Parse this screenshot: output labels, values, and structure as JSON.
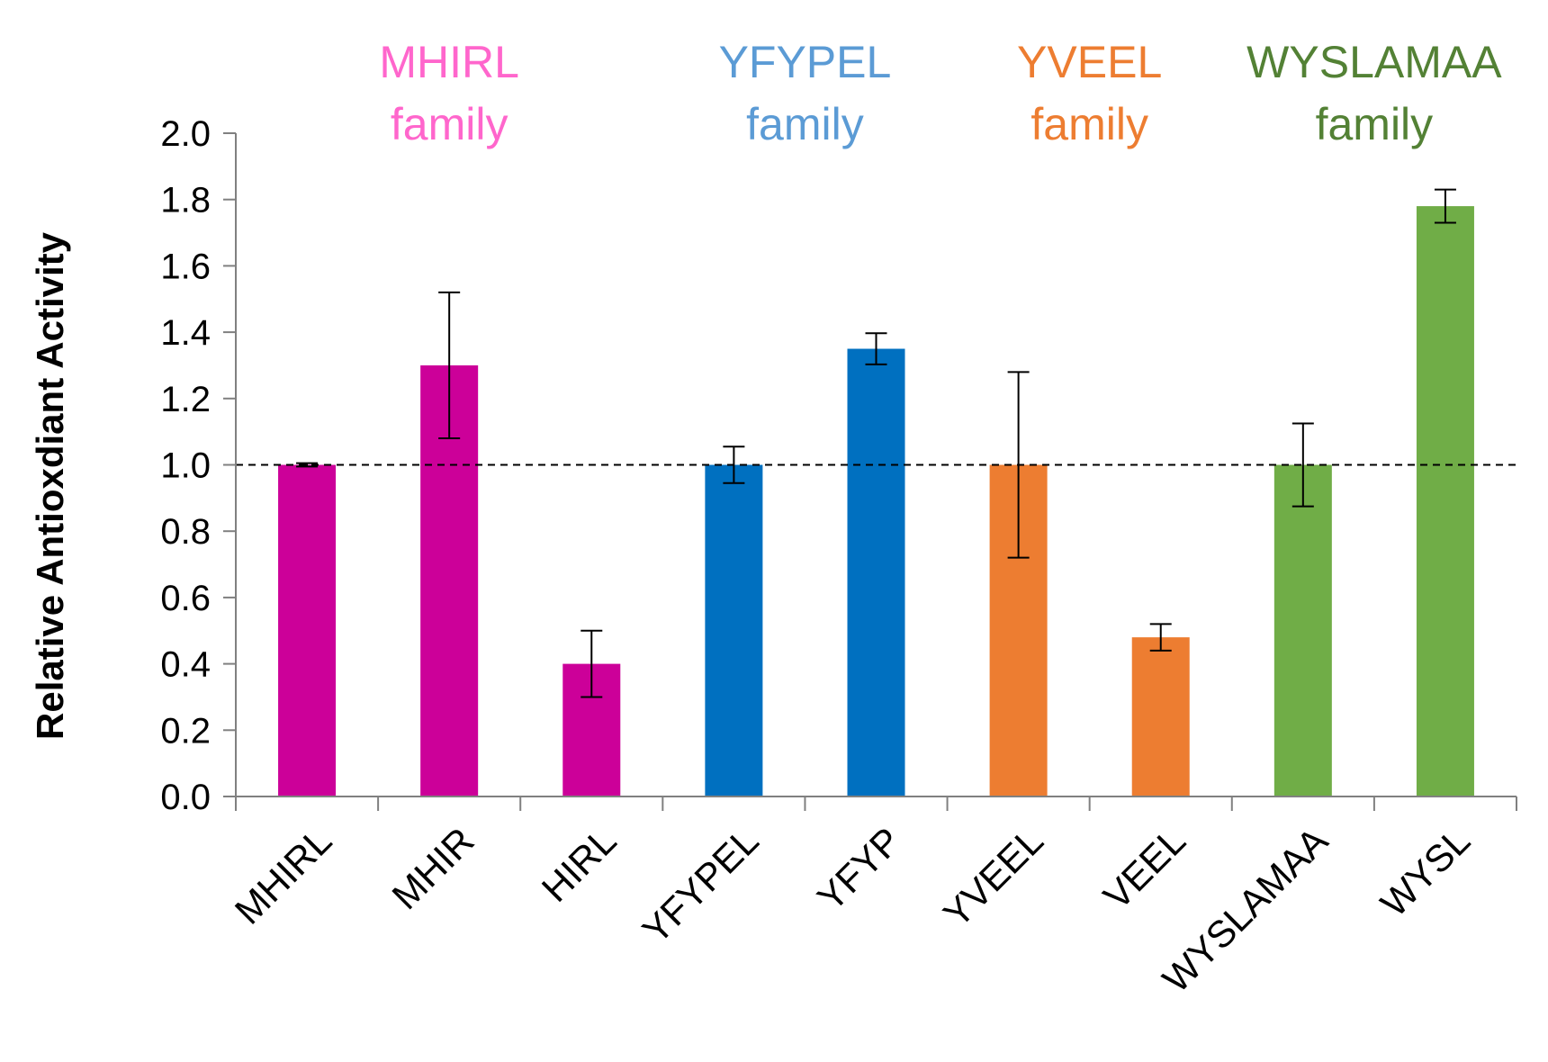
{
  "chart_data": {
    "type": "bar",
    "title": "",
    "xlabel": "",
    "ylabel": "Relative Antioxdiant Activity",
    "ylim": [
      0,
      2.0
    ],
    "yticks": [
      "0.0",
      "0.2",
      "0.4",
      "0.6",
      "0.8",
      "1.0",
      "1.2",
      "1.4",
      "1.6",
      "1.8",
      "2.0"
    ],
    "reference_line": 1.0,
    "grid": false,
    "categories": [
      "MHIRL",
      "MHIR",
      "HIRL",
      "YFYPEL",
      "YFYP",
      "YVEEL",
      "VEEL",
      "WYSLAMAA",
      "WYSL"
    ],
    "values": [
      1.0,
      1.3,
      0.4,
      1.0,
      1.35,
      1.0,
      0.48,
      1.0,
      1.78
    ],
    "errors": [
      0.005,
      0.22,
      0.1,
      0.055,
      0.047,
      0.28,
      0.04,
      0.125,
      0.05
    ],
    "bar_colors": [
      "#cc0099",
      "#cc0099",
      "#cc0099",
      "#0070c0",
      "#0070c0",
      "#ed7d31",
      "#ed7d31",
      "#70ad47",
      "#70ad47"
    ],
    "families": [
      {
        "name": "MHIRL",
        "suffix": "family",
        "color": "#ff66cc",
        "categories": [
          "MHIRL",
          "MHIR",
          "HIRL"
        ]
      },
      {
        "name": "YFYPEL",
        "suffix": "family",
        "color": "#5b9bd5",
        "categories": [
          "YFYPEL",
          "YFYP"
        ]
      },
      {
        "name": "YVEEL",
        "suffix": "family",
        "color": "#ed7d31",
        "categories": [
          "YVEEL",
          "VEEL"
        ]
      },
      {
        "name": "WYSLAMAA",
        "suffix": "family",
        "color": "#538135",
        "categories": [
          "WYSLAMAA",
          "WYSL"
        ]
      }
    ]
  }
}
